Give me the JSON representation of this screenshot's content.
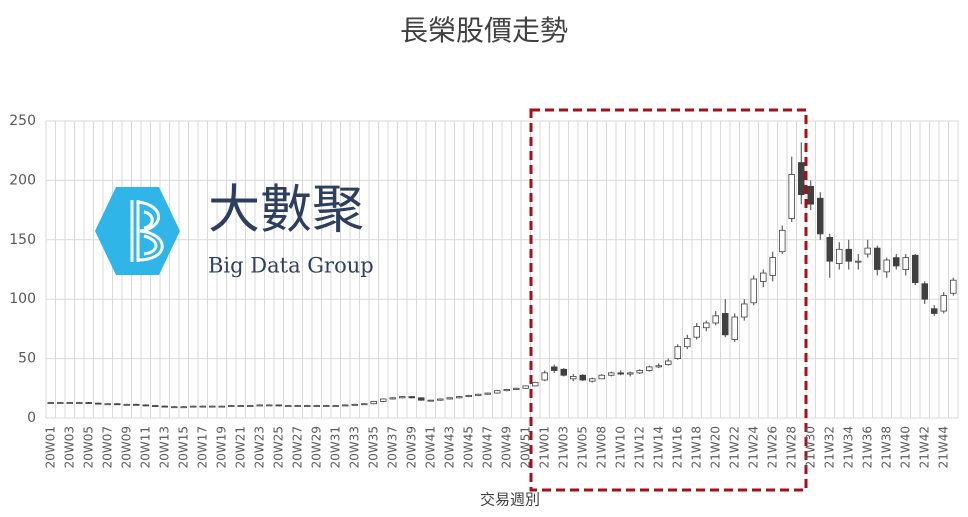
{
  "chart_data": {
    "type": "candlestick",
    "title": "長榮股價走勢",
    "x_label": "交易週別",
    "logo": {
      "name": "大數聚",
      "tagline": "Big Data Group"
    },
    "categories": [
      "20W01",
      null,
      "20W03",
      null,
      "20W05",
      null,
      "20W07",
      null,
      "20W09",
      null,
      "20W11",
      null,
      "20W13",
      null,
      "20W15",
      null,
      "20W17",
      null,
      "20W19",
      null,
      "20W21",
      null,
      "20W23",
      null,
      "20W25",
      null,
      "20W27",
      null,
      "20W29",
      null,
      "20W31",
      null,
      "20W33",
      null,
      "20W35",
      null,
      "20W37",
      null,
      "20W39",
      null,
      "20W41",
      null,
      "20W43",
      null,
      "20W45",
      null,
      "20W47",
      null,
      "20W49",
      null,
      "20W51",
      null,
      "21W01",
      null,
      "21W03",
      null,
      "21W05",
      null,
      "21W08",
      null,
      "21W10",
      null,
      "21W12",
      null,
      "21W14",
      null,
      "21W16",
      null,
      "21W18",
      null,
      "21W20",
      null,
      "21W22",
      null,
      "21W24",
      null,
      "21W26",
      null,
      "21W28",
      null,
      "21W30",
      null,
      "21W32",
      null,
      "21W34",
      null,
      "21W36",
      null,
      "21W38",
      null,
      "21W40",
      null,
      "21W42",
      null,
      "21W44",
      null
    ],
    "open": [
      13,
      13,
      13,
      13,
      13,
      12.5,
      12,
      12,
      11.5,
      11.5,
      11,
      10.5,
      10,
      9.5,
      9.5,
      9.5,
      10,
      10,
      10,
      10,
      10.5,
      10.5,
      10.5,
      11,
      11,
      10.5,
      10.5,
      10.5,
      10.5,
      10.5,
      10.5,
      10.5,
      11,
      11.5,
      12,
      14,
      16,
      17,
      18,
      17,
      15,
      15,
      16,
      17,
      18,
      19,
      20,
      21,
      23,
      24,
      25,
      27,
      32,
      43,
      41,
      33,
      36,
      31,
      33,
      36,
      38,
      37,
      38,
      40,
      43,
      45,
      50,
      60,
      68,
      76,
      80,
      88,
      66,
      85,
      97,
      115,
      120,
      140,
      168,
      215,
      195,
      185,
      152,
      130,
      142,
      132,
      138,
      143,
      123,
      135,
      125,
      137,
      113,
      92,
      90,
      105
    ],
    "high": [
      13.5,
      13.5,
      13.5,
      13.5,
      13.5,
      13,
      12.5,
      12.5,
      12,
      12,
      11.5,
      11,
      10.5,
      10,
      10,
      10.5,
      10.5,
      10.5,
      10.5,
      11,
      11,
      11,
      11.5,
      11.5,
      11.5,
      11,
      11,
      11,
      11,
      11,
      11,
      11.5,
      12,
      12.5,
      14.5,
      16.5,
      17.5,
      18.5,
      18.5,
      17.5,
      15.5,
      16.5,
      17.5,
      18.5,
      19.5,
      20.5,
      21.5,
      23.5,
      24.5,
      25.5,
      27.5,
      30.5,
      40,
      45,
      42,
      37,
      37,
      34,
      37,
      39,
      40,
      39,
      41,
      44,
      46,
      50,
      62,
      70,
      80,
      82,
      90,
      100,
      88,
      100,
      120,
      125,
      140,
      162,
      220,
      232,
      200,
      190,
      155,
      148,
      150,
      138,
      150,
      145,
      135,
      138,
      138,
      138,
      115,
      95,
      106,
      118
    ],
    "low": [
      12.5,
      12.5,
      12.5,
      12.5,
      12,
      11.5,
      11.5,
      11,
      11,
      10.5,
      10,
      9.5,
      9,
      9,
      9,
      9,
      9.5,
      9.5,
      9.5,
      9.5,
      10,
      10,
      10,
      10.5,
      10,
      10,
      10,
      10,
      10,
      10,
      10,
      10,
      10.5,
      11,
      11.5,
      13.5,
      15.5,
      16.5,
      16.5,
      14.5,
      14.5,
      14.5,
      15.5,
      16.5,
      17.5,
      18.5,
      19.5,
      20.5,
      22.5,
      23.5,
      24.5,
      26.5,
      31,
      38,
      35,
      31,
      31,
      30,
      33,
      35,
      36,
      35,
      37,
      39,
      42,
      44,
      49,
      58,
      66,
      73,
      78,
      68,
      64,
      82,
      95,
      110,
      115,
      138,
      165,
      180,
      175,
      150,
      118,
      125,
      125,
      125,
      135,
      120,
      118,
      125,
      120,
      112,
      96,
      86,
      88,
      103
    ],
    "close": [
      13,
      13,
      13,
      13,
      12.5,
      12,
      12,
      11.5,
      11.5,
      11,
      10.5,
      10,
      9.5,
      9.5,
      9.5,
      10,
      10,
      10,
      10,
      10.5,
      10.5,
      10.5,
      11,
      11,
      10.5,
      10.5,
      10.5,
      10.5,
      10.5,
      10.5,
      10.5,
      11,
      11.5,
      12,
      14,
      16,
      17,
      18,
      17,
      15,
      15,
      16,
      17,
      18,
      19,
      20,
      21,
      23,
      24,
      25,
      27,
      30,
      38,
      40,
      36,
      35,
      32,
      33,
      36,
      38,
      37,
      38,
      40,
      43,
      44,
      48,
      60,
      67,
      77,
      80,
      86,
      70,
      85,
      96,
      117,
      122,
      135,
      158,
      205,
      188,
      180,
      155,
      132,
      142,
      132,
      132,
      143,
      125,
      133,
      128,
      135,
      114,
      100,
      88,
      103,
      116
    ],
    "up_color": "#ffffff",
    "down_color": "#404040",
    "ylim": [
      0,
      250
    ],
    "yticks": [
      0,
      50,
      100,
      150,
      200,
      250
    ],
    "grid": true
  }
}
